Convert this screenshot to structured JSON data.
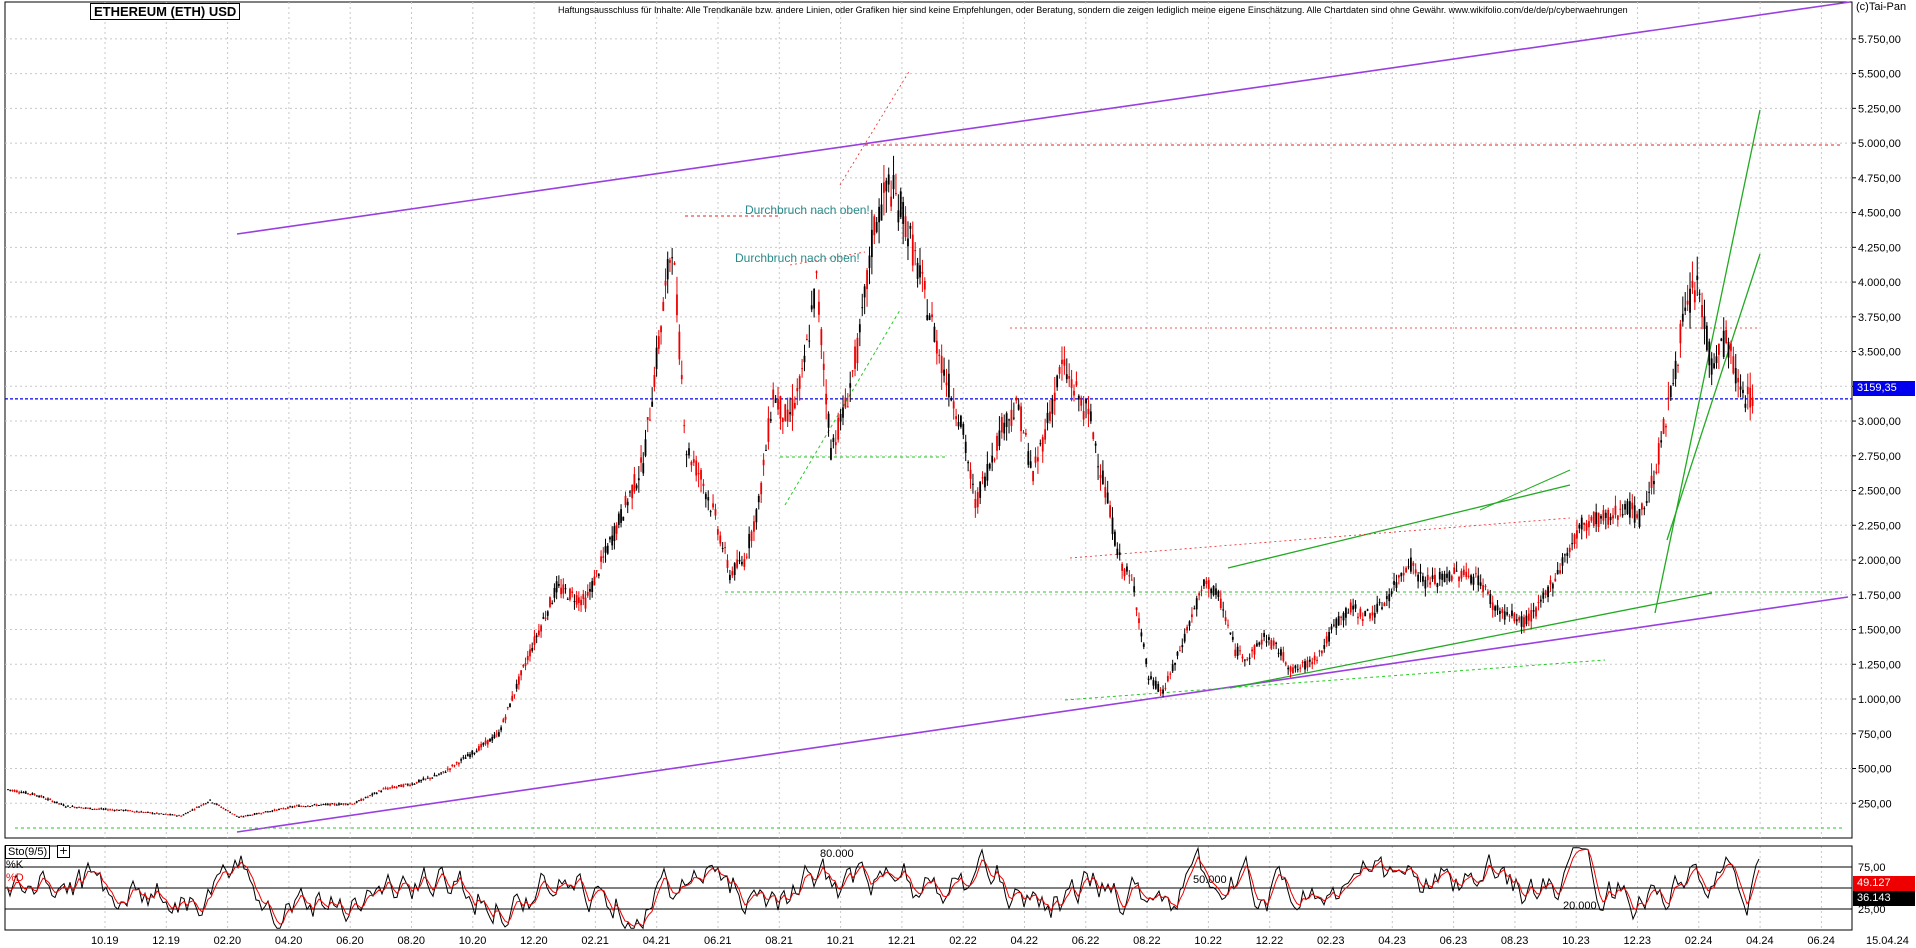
{
  "header": {
    "title": "ETHEREUM (ETH) USD",
    "disclaimer": "Haftungsausschluss für Inhalte: Alle Trendkanäle bzw. andere Linien, oder Grafiken hier sind keine Empfehlungen, oder Beratung, sondern die zeigen lediglich meine eigene Einschätzung. Alle Chartdaten sind ohne Gewähr. www.wikifolio.com/de/de/p/cyberwaehrungen",
    "copyright": "(c)Tai-Pan"
  },
  "chart_data": {
    "type": "candlestick",
    "y_ticks": [
      "5.750,00",
      "5.500,00",
      "5.250,00",
      "5.000,00",
      "4.750,00",
      "4.500,00",
      "4.250,00",
      "4.000,00",
      "3.750,00",
      "3.500,00",
      "3.250,00",
      "3.000,00",
      "2.750,00",
      "2.500,00",
      "2.250,00",
      "2.000,00",
      "1.750,00",
      "1.500,00",
      "1.250,00",
      "1.000,00",
      "750,00",
      "500,00",
      "250,00"
    ],
    "y_values": [
      5750,
      5500,
      5250,
      5000,
      4750,
      4500,
      4250,
      4000,
      3750,
      3500,
      3250,
      3000,
      2750,
      2500,
      2250,
      2000,
      1750,
      1500,
      1250,
      1000,
      750,
      500,
      250
    ],
    "x_ticks": [
      "10.19",
      "12.19",
      "02.20",
      "04.20",
      "06.20",
      "08.20",
      "10.20",
      "12.20",
      "02.21",
      "04.21",
      "06.21",
      "08.21",
      "10.21",
      "12.21",
      "02.22",
      "04.22",
      "06.22",
      "08.22",
      "10.22",
      "12.22",
      "02.23",
      "04.23",
      "06.23",
      "08.23",
      "10.23",
      "12.23",
      "02.24",
      "04.24",
      "06.24"
    ],
    "x_end_label": "15.04.24",
    "last_price": "3159,35",
    "last_value": 3159.35,
    "ylim": [
      0,
      5900
    ],
    "annotations": [
      "Durchbruch nach oben!",
      "Durchbruch nach oben!"
    ],
    "price_path": [
      [
        0,
        350
      ],
      [
        2,
        310
      ],
      [
        4,
        230
      ],
      [
        6,
        210
      ],
      [
        8,
        200
      ],
      [
        10,
        180
      ],
      [
        12,
        160
      ],
      [
        14,
        270
      ],
      [
        16,
        150
      ],
      [
        18,
        190
      ],
      [
        20,
        230
      ],
      [
        22,
        240
      ],
      [
        24,
        250
      ],
      [
        26,
        350
      ],
      [
        28,
        390
      ],
      [
        30,
        460
      ],
      [
        32,
        600
      ],
      [
        34,
        750
      ],
      [
        36,
        1300
      ],
      [
        38,
        1800
      ],
      [
        40,
        1700
      ],
      [
        42,
        2200
      ],
      [
        44,
        2700
      ],
      [
        46,
        4300
      ],
      [
        47,
        2800
      ],
      [
        48,
        2600
      ],
      [
        49,
        2300
      ],
      [
        50,
        1900
      ],
      [
        51,
        2000
      ],
      [
        52,
        2400
      ],
      [
        53,
        3200
      ],
      [
        54,
        3000
      ],
      [
        55,
        3300
      ],
      [
        56,
        4000
      ],
      [
        57,
        2800
      ],
      [
        58,
        3100
      ],
      [
        59,
        3600
      ],
      [
        60,
        4400
      ],
      [
        61,
        4700
      ],
      [
        62,
        4500
      ],
      [
        63,
        4100
      ],
      [
        64,
        3700
      ],
      [
        65,
        3300
      ],
      [
        66,
        3000
      ],
      [
        67,
        2400
      ],
      [
        68,
        2700
      ],
      [
        69,
        3000
      ],
      [
        70,
        3100
      ],
      [
        71,
        2600
      ],
      [
        72,
        3000
      ],
      [
        73,
        3400
      ],
      [
        74,
        3200
      ],
      [
        75,
        3000
      ],
      [
        76,
        2500
      ],
      [
        77,
        2000
      ],
      [
        78,
        1800
      ],
      [
        79,
        1150
      ],
      [
        80,
        1050
      ],
      [
        81,
        1300
      ],
      [
        82,
        1600
      ],
      [
        83,
        1850
      ],
      [
        84,
        1700
      ],
      [
        85,
        1350
      ],
      [
        86,
        1300
      ],
      [
        87,
        1450
      ],
      [
        88,
        1350
      ],
      [
        89,
        1200
      ],
      [
        90,
        1250
      ],
      [
        91,
        1350
      ],
      [
        92,
        1550
      ],
      [
        93,
        1650
      ],
      [
        94,
        1600
      ],
      [
        95,
        1650
      ],
      [
        96,
        1800
      ],
      [
        97,
        2000
      ],
      [
        98,
        1850
      ],
      [
        99,
        1850
      ],
      [
        100,
        1900
      ],
      [
        101,
        1900
      ],
      [
        102,
        1850
      ],
      [
        103,
        1650
      ],
      [
        104,
        1600
      ],
      [
        105,
        1550
      ],
      [
        106,
        1650
      ],
      [
        107,
        1850
      ],
      [
        108,
        2050
      ],
      [
        109,
        2250
      ],
      [
        110,
        2300
      ],
      [
        111,
        2300
      ],
      [
        112,
        2400
      ],
      [
        113,
        2300
      ],
      [
        114,
        2600
      ],
      [
        115,
        3100
      ],
      [
        116,
        3700
      ],
      [
        117,
        4000
      ],
      [
        118,
        3400
      ],
      [
        119,
        3600
      ],
      [
        120,
        3200
      ],
      [
        121,
        3159
      ]
    ],
    "oscillator": {
      "name": "Sto(9/5)",
      "k_label": "%K",
      "d_label": "%D",
      "levels": [
        "75,00",
        "50,00",
        "25,00"
      ],
      "level_values": [
        75,
        50,
        25
      ],
      "inner_labels": [
        "80.000",
        "50.000",
        "20.000"
      ],
      "k_value": "49.127",
      "d_value": "36.143"
    }
  }
}
